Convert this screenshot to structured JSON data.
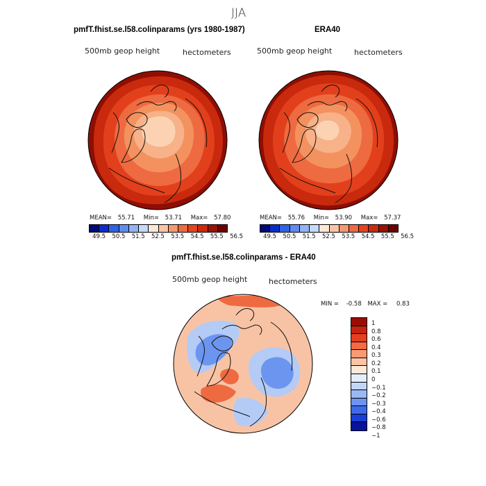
{
  "figure_title": "JJA",
  "panels": {
    "left": {
      "title": "pmfT.fhist.se.l58.colinparams (yrs 1980-1987)",
      "field": "500mb geop height",
      "units": "hectometers",
      "mean_label": "MEAN=",
      "mean": "55.71",
      "min_label": "Min=",
      "min": "53.71",
      "max_label": "Max=",
      "max": "57.80"
    },
    "right": {
      "title": "ERA40",
      "field": "500mb geop height",
      "units": "hectometers",
      "mean_label": "MEAN=",
      "mean": "55.76",
      "min_label": "Min=",
      "min": "53.90",
      "max_label": "Max=",
      "max": "57.37"
    },
    "diff": {
      "title": "pmfT.fhist.se.l58.colinparams - ERA40",
      "field": "500mb geop height",
      "units": "hectometers",
      "min_label": "MIN =",
      "min": "-0.58",
      "max_label": "MAX =",
      "max": "0.83"
    }
  },
  "colorbar_abs": {
    "colors": [
      "#000a7a",
      "#0c2dcc",
      "#2f63e6",
      "#5f8cf0",
      "#93b3f5",
      "#c6d9fa",
      "#fde7d6",
      "#fac3a7",
      "#f4986f",
      "#ee6a41",
      "#e7431d",
      "#cb2a0d",
      "#9b1204",
      "#6e0000"
    ],
    "tick_labels": [
      "49.5",
      "50.5",
      "51.5",
      "52.5",
      "53.5",
      "54.5",
      "55.5",
      "56.5"
    ]
  },
  "colorbar_diff": {
    "colors": [
      "#9a0d03",
      "#c52310",
      "#e43f1e",
      "#f36a43",
      "#f89a72",
      "#fbc4a5",
      "#fde8d6",
      "#e3eefc",
      "#c3d6f8",
      "#99b8f4",
      "#6d93ef",
      "#3e6ae8",
      "#1a3fd6",
      "#06139d"
    ],
    "tick_labels": [
      "1",
      "0.8",
      "0.6",
      "0.4",
      "0.3",
      "0.2",
      "0.1",
      "0",
      "−0.1",
      "−0.2",
      "−0.3",
      "−0.4",
      "−0.6",
      "−0.8",
      "−1"
    ]
  },
  "map_fill_colors": {
    "outer": "#8f0e03",
    "ring1": "#c92a0d",
    "ring2": "#e2401c",
    "ring3": "#ee6a41",
    "ring4": "#f3925f",
    "ring5": "#f7b289",
    "pole": "#fbd3b3",
    "diff_base": "#f8c3a5",
    "diff_blue": "#6c95ef",
    "diff_lightblue": "#b4cbf6",
    "diff_red": "#ee6a41"
  }
}
